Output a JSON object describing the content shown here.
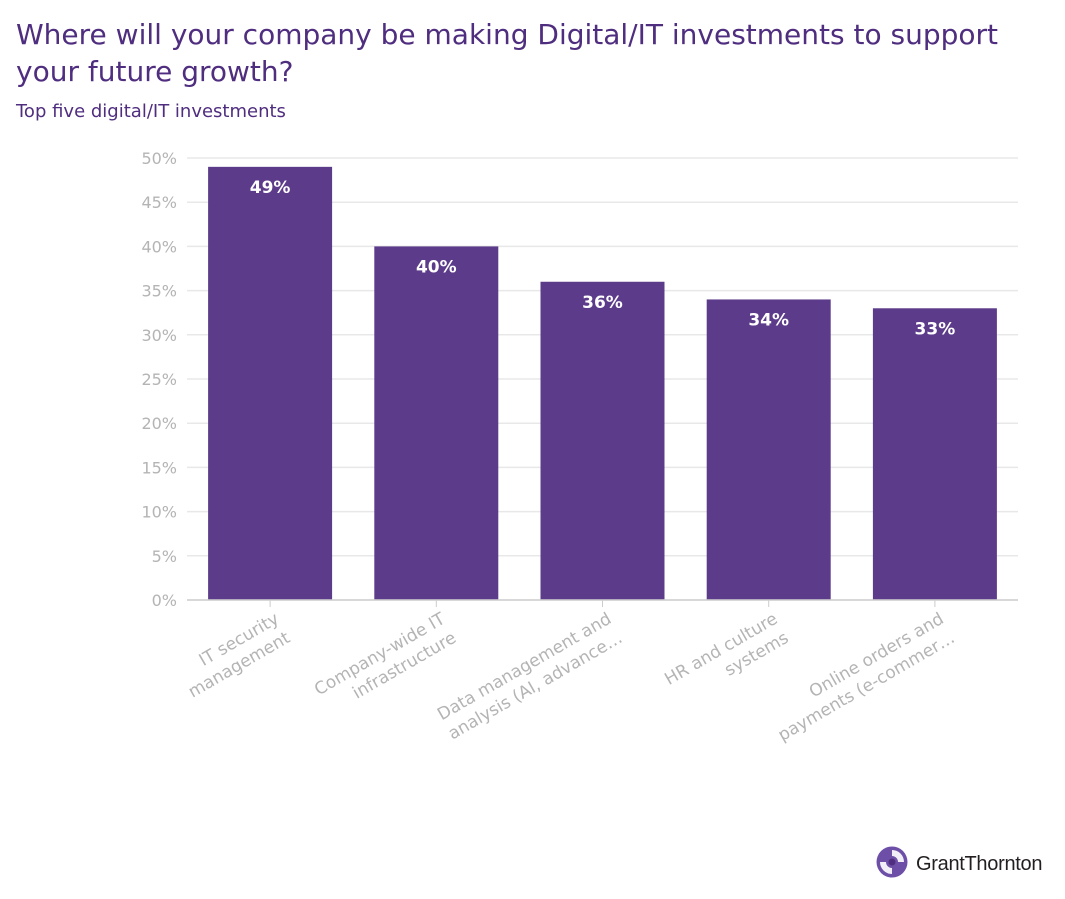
{
  "chart_data": {
    "type": "bar",
    "title": "Where will your company be making Digital/IT investments to support your future growth?",
    "subtitle": "Top five digital/IT investments",
    "categories": [
      [
        "IT security",
        "management"
      ],
      [
        "Company-wide IT",
        "infrastructure"
      ],
      [
        "Data management and",
        "analysis (AI, advance…"
      ],
      [
        "HR and culture",
        "systems"
      ],
      [
        "Online orders and",
        "payments (e-commer…"
      ]
    ],
    "values": [
      49,
      40,
      36,
      34,
      33
    ],
    "data_labels": [
      "49%",
      "40%",
      "36%",
      "34%",
      "33%"
    ],
    "ylim": [
      0,
      50
    ],
    "yticks": [
      0,
      5,
      10,
      15,
      20,
      25,
      30,
      35,
      40,
      45,
      50
    ],
    "ytick_labels": [
      "0%",
      "5%",
      "10%",
      "15%",
      "20%",
      "25%",
      "30%",
      "35%",
      "40%",
      "45%",
      "50%"
    ],
    "xlabel": "",
    "ylabel": "",
    "grid": true,
    "bar_color": "#5c3c8a",
    "label_color": "#ffffff",
    "tick_color": "#b4b4b4"
  },
  "brand": {
    "name": "GrantThornton",
    "accent_color": "#4f2d7f",
    "icon": "grant-thornton-logo-icon"
  }
}
